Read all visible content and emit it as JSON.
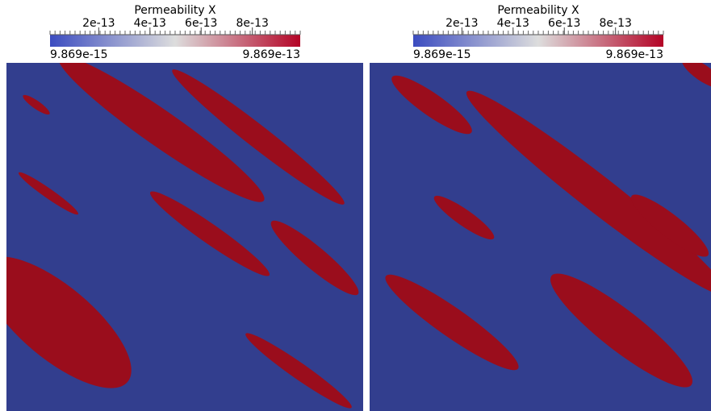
{
  "panels": [
    {
      "colorbar": {
        "title": "Permeability X",
        "range": [
          9.869e-15,
          9.869e-13
        ],
        "ticks": [
          2e-13,
          4e-13,
          6e-13,
          8e-13
        ]
      }
    },
    {
      "colorbar": {
        "title": "Permeability X",
        "range": [
          9.869e-15,
          9.869e-13
        ],
        "ticks": [
          2e-13,
          4e-13,
          6e-13,
          8e-13
        ]
      }
    }
  ]
}
